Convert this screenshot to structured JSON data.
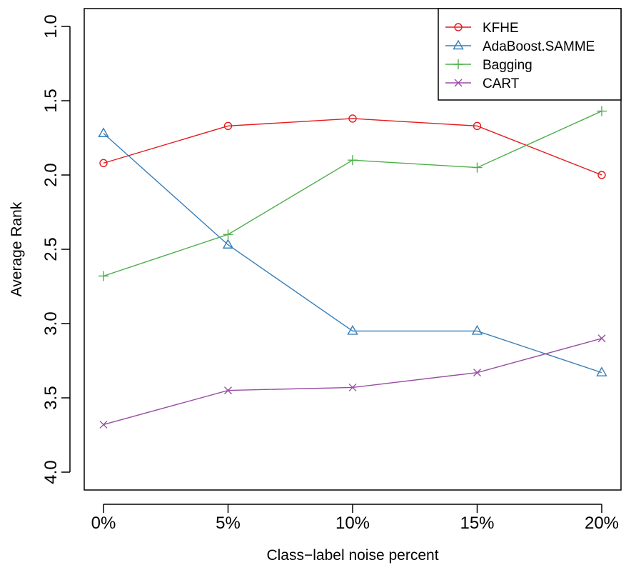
{
  "chart_data": {
    "type": "line",
    "title": "",
    "xlabel": "Class−label noise percent",
    "ylabel": "Average Rank",
    "categories": [
      "0%",
      "5%",
      "10%",
      "15%",
      "20%"
    ],
    "yticks": [
      "1.0",
      "1.5",
      "2.0",
      "2.5",
      "3.0",
      "3.5",
      "4.0"
    ],
    "ylim": [
      4.0,
      1.0
    ],
    "y_reversed": true,
    "grid": false,
    "legend_position": "top-right",
    "series": [
      {
        "name": "KFHE",
        "color": "#e41a1c",
        "marker": "circle",
        "values": [
          1.92,
          1.67,
          1.62,
          1.67,
          2.0
        ]
      },
      {
        "name": "AdaBoost.SAMME",
        "color": "#377eb8",
        "marker": "triangle",
        "values": [
          1.72,
          2.47,
          3.05,
          3.05,
          3.33
        ]
      },
      {
        "name": "Bagging",
        "color": "#4daf4a",
        "marker": "plus",
        "values": [
          2.68,
          2.4,
          1.9,
          1.95,
          1.57
        ]
      },
      {
        "name": "CART",
        "color": "#984ea3",
        "marker": "cross",
        "values": [
          3.68,
          3.45,
          3.43,
          3.33,
          3.1
        ]
      }
    ]
  }
}
